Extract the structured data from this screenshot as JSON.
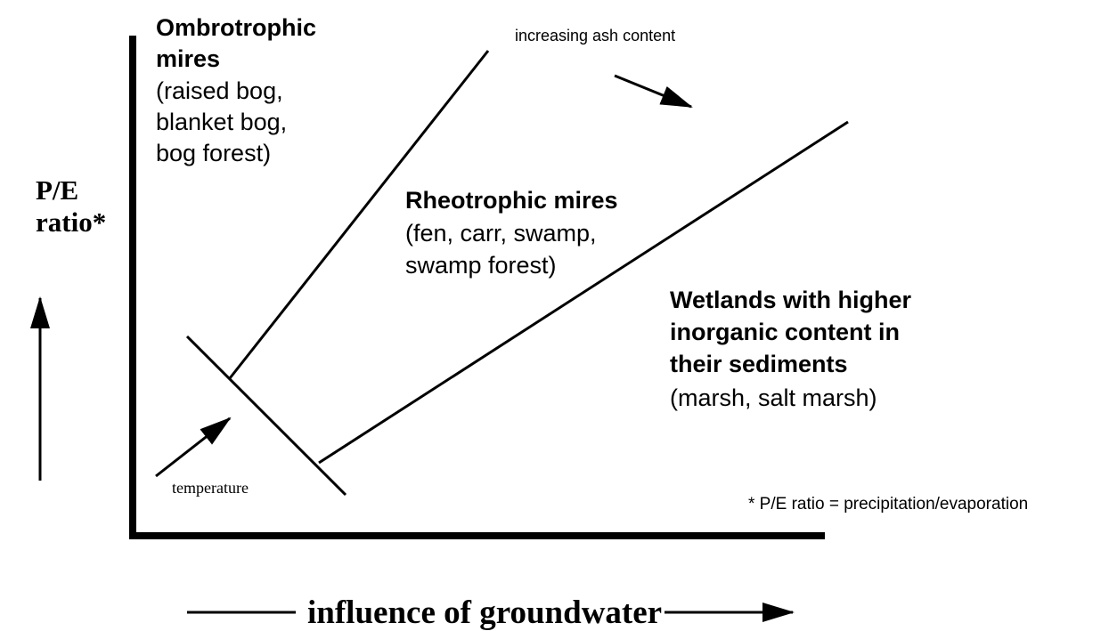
{
  "title_y_axis": [
    "P/E",
    "ratio*"
  ],
  "x_axis_label": "influence of groundwater",
  "regions": [
    {
      "lines": [
        "Ombrotrophic",
        "mires",
        "(raised bog,",
        "blanket bog,",
        "bog forest)"
      ]
    },
    {
      "lines": [
        "Rheotrophic mires",
        "(fen, carr, swamp,",
        "swamp forest)"
      ]
    },
    {
      "lines": [
        "Wetlands with higher",
        "inorganic content in",
        "their sediments",
        "(marsh, salt marsh)"
      ]
    }
  ],
  "annotations": {
    "ash": "increasing ash content",
    "temperature": "temperature",
    "footnote": "* P/E ratio = precipitation/evaporation"
  }
}
